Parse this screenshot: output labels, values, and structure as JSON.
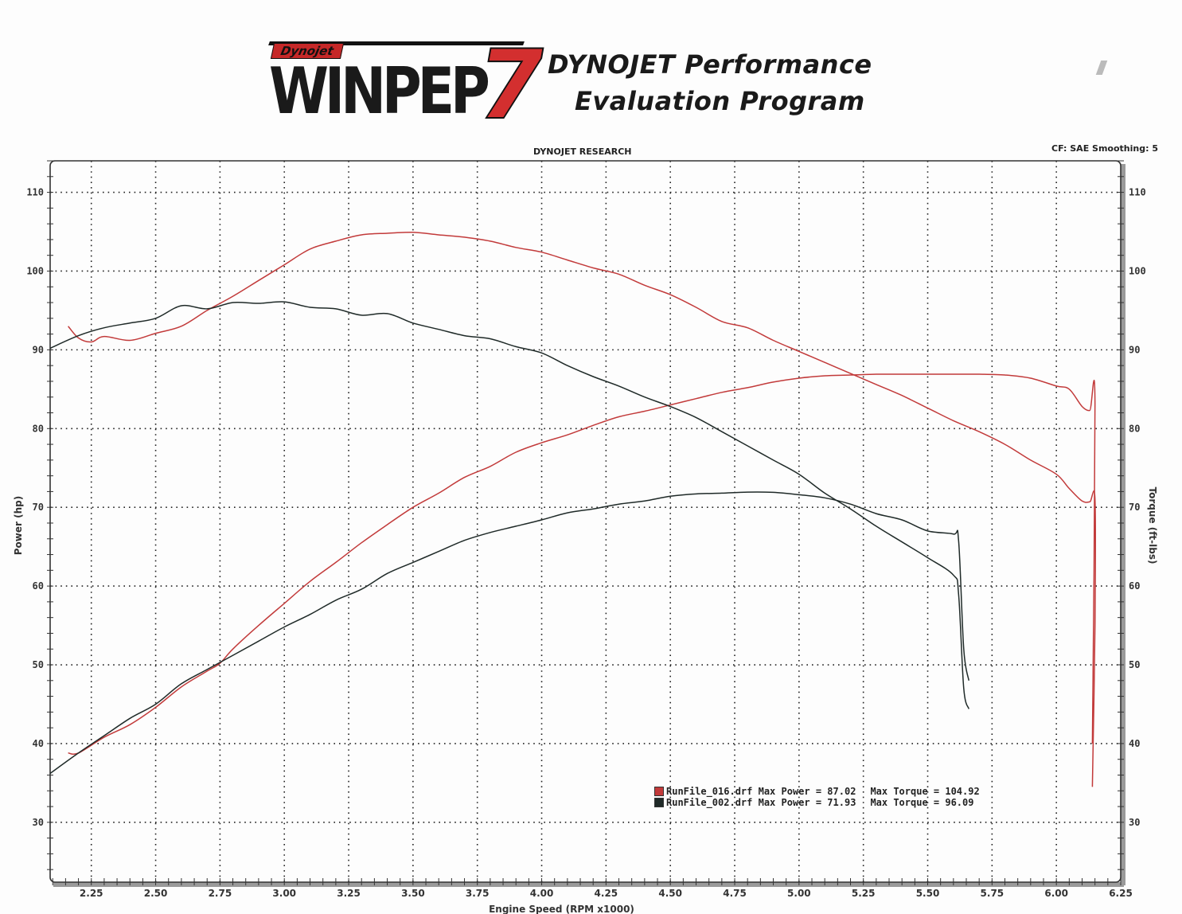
{
  "header": {
    "logo_brand": "Dynojet",
    "logo_word": "WINPEP",
    "logo_version": "7",
    "title_line1": "DYNOJET Performance",
    "title_line2": "Evaluation Program",
    "chart_heading": "DYNOJET RESEARCH",
    "correction": "CF: SAE  Smoothing: 5"
  },
  "legend": [
    {
      "file": "RunFile_016.drf",
      "max_power_label": "Max Power = 87.02",
      "max_torque_label": "Max Torque = 104.92",
      "color": "#c23a3a"
    },
    {
      "file": "RunFile_002.drf",
      "max_power_label": "Max Power = 71.93",
      "max_torque_label": "Max Torque = 96.09",
      "color": "#1f2a28"
    }
  ],
  "chart_data": {
    "type": "line",
    "title": "DYNOJET RESEARCH",
    "subtitle": "CF: SAE  Smoothing: 5",
    "xlabel": "Engine Speed (RPM x1000)",
    "ylabel": "Power (hp)",
    "y2label": "Torque (ft-lbs)",
    "xlim": [
      2.09,
      6.25
    ],
    "ylim": [
      22.4,
      114
    ],
    "y2lim": [
      22.4,
      114
    ],
    "x_ticks": [
      "2.25",
      "2.50",
      "2.75",
      "3.00",
      "3.25",
      "3.50",
      "3.75",
      "4.00",
      "4.25",
      "4.50",
      "4.75",
      "5.00",
      "5.25",
      "5.50",
      "5.75",
      "6.00",
      "6.25"
    ],
    "y_ticks": [
      "30",
      "40",
      "50",
      "60",
      "70",
      "80",
      "90",
      "100",
      "110"
    ],
    "y2_ticks": [
      "30",
      "40",
      "50",
      "60",
      "70",
      "80",
      "90",
      "100",
      "110"
    ],
    "grid": true,
    "grid_style": "dotted",
    "legend_position": "lower-right inside",
    "series": [
      {
        "name": "RunFile_016.drf Power (hp)",
        "color": "#c23a3a",
        "max": 87.02,
        "x": [
          2.16,
          2.2,
          2.3,
          2.4,
          2.5,
          2.6,
          2.7,
          2.75,
          2.8,
          2.9,
          3.0,
          3.1,
          3.2,
          3.3,
          3.4,
          3.5,
          3.6,
          3.7,
          3.8,
          3.9,
          4.0,
          4.1,
          4.2,
          4.3,
          4.4,
          4.5,
          4.6,
          4.7,
          4.8,
          4.9,
          5.0,
          5.1,
          5.2,
          5.3,
          5.4,
          5.5,
          5.6,
          5.7,
          5.8,
          5.9,
          6.0,
          6.05,
          6.1,
          6.13,
          6.15,
          6.14
        ],
        "y": [
          38.8,
          38.8,
          40.8,
          42.4,
          44.6,
          47.2,
          49.2,
          50.2,
          52.0,
          55.0,
          57.8,
          60.6,
          63.0,
          65.5,
          67.8,
          70.0,
          71.8,
          73.8,
          75.2,
          77.0,
          78.2,
          79.2,
          80.4,
          81.5,
          82.2,
          83.0,
          83.8,
          84.6,
          85.2,
          85.9,
          86.4,
          86.7,
          86.8,
          86.9,
          86.9,
          86.9,
          86.9,
          86.9,
          86.8,
          86.4,
          85.4,
          85.0,
          82.8,
          82.3,
          83.2,
          40.0
        ]
      },
      {
        "name": "RunFile_016.drf Torque (ft-lbs)",
        "color": "#c23a3a",
        "max": 104.92,
        "x": [
          2.16,
          2.2,
          2.25,
          2.3,
          2.4,
          2.5,
          2.6,
          2.7,
          2.8,
          2.9,
          3.0,
          3.1,
          3.2,
          3.3,
          3.4,
          3.5,
          3.6,
          3.7,
          3.8,
          3.9,
          4.0,
          4.1,
          4.2,
          4.3,
          4.4,
          4.5,
          4.6,
          4.7,
          4.8,
          4.9,
          5.0,
          5.1,
          5.2,
          5.3,
          5.4,
          5.5,
          5.6,
          5.7,
          5.8,
          5.9,
          6.0,
          6.05,
          6.1,
          6.13,
          6.15,
          6.15,
          6.14
        ],
        "y": [
          93.0,
          91.5,
          91.0,
          91.7,
          91.2,
          92.1,
          93.0,
          95.0,
          96.8,
          98.8,
          100.8,
          102.8,
          103.8,
          104.6,
          104.8,
          104.92,
          104.6,
          104.3,
          103.8,
          103.0,
          102.4,
          101.4,
          100.4,
          99.6,
          98.2,
          97.0,
          95.4,
          93.6,
          92.8,
          91.2,
          89.8,
          88.4,
          87.0,
          85.6,
          84.2,
          82.6,
          81.0,
          79.6,
          78.0,
          76.0,
          74.2,
          72.4,
          70.8,
          70.7,
          71.0,
          55.0,
          34.5
        ]
      },
      {
        "name": "RunFile_002.drf Power (hp)",
        "color": "#1f2a28",
        "max": 71.93,
        "x": [
          2.09,
          2.2,
          2.3,
          2.4,
          2.5,
          2.6,
          2.7,
          2.8,
          2.9,
          3.0,
          3.1,
          3.2,
          3.3,
          3.4,
          3.5,
          3.6,
          3.7,
          3.8,
          3.9,
          4.0,
          4.1,
          4.2,
          4.3,
          4.4,
          4.5,
          4.6,
          4.7,
          4.8,
          4.9,
          5.0,
          5.1,
          5.2,
          5.3,
          5.4,
          5.5,
          5.6,
          5.62,
          5.64,
          5.66
        ],
        "y": [
          36.2,
          38.8,
          41.0,
          43.2,
          45.0,
          47.6,
          49.4,
          51.2,
          53.0,
          54.8,
          56.4,
          58.2,
          59.6,
          61.6,
          63.0,
          64.4,
          65.8,
          66.8,
          67.6,
          68.4,
          69.3,
          69.8,
          70.4,
          70.8,
          71.4,
          71.7,
          71.8,
          71.93,
          71.9,
          71.6,
          71.2,
          70.4,
          69.2,
          68.4,
          67.0,
          66.6,
          65.8,
          52.0,
          48.0
        ]
      },
      {
        "name": "RunFile_002.drf Torque (ft-lbs)",
        "color": "#1f2a28",
        "max": 96.09,
        "x": [
          2.09,
          2.2,
          2.3,
          2.4,
          2.5,
          2.6,
          2.7,
          2.8,
          2.9,
          3.0,
          3.1,
          3.2,
          3.3,
          3.4,
          3.5,
          3.6,
          3.7,
          3.8,
          3.9,
          4.0,
          4.1,
          4.2,
          4.3,
          4.4,
          4.5,
          4.6,
          4.7,
          4.8,
          4.9,
          5.0,
          5.1,
          5.2,
          5.3,
          5.4,
          5.5,
          5.6,
          5.62,
          5.64,
          5.66
        ],
        "y": [
          90.2,
          91.8,
          92.8,
          93.4,
          94.0,
          95.6,
          95.2,
          96.0,
          95.9,
          96.09,
          95.4,
          95.2,
          94.4,
          94.6,
          93.4,
          92.6,
          91.8,
          91.4,
          90.4,
          89.6,
          88.0,
          86.6,
          85.4,
          84.0,
          82.8,
          81.4,
          79.6,
          77.8,
          76.0,
          74.2,
          71.8,
          69.8,
          67.6,
          65.6,
          63.6,
          61.4,
          59.0,
          47.0,
          44.4
        ]
      }
    ]
  }
}
